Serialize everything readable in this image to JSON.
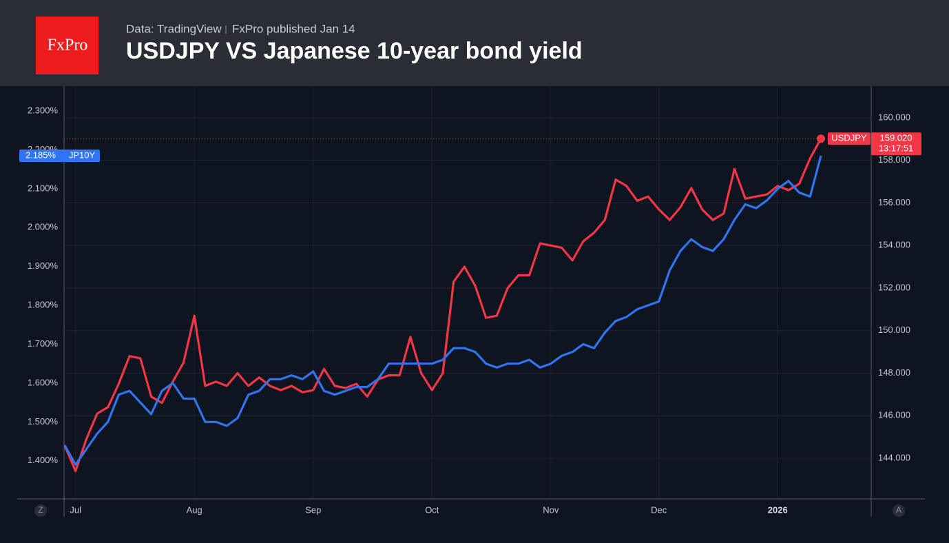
{
  "header": {
    "logo": "FxPro",
    "source": "Data: TradingView",
    "published": "FxPro published Jan 14"
  },
  "buttons": {
    "left": "Z",
    "right": "A"
  },
  "chart_data": {
    "type": "line",
    "title": "USDJPY VS Japanese 10-year bond yield",
    "categories": [
      null,
      "Jul",
      null,
      null,
      null,
      null,
      null,
      null,
      null,
      null,
      null,
      null,
      "Aug",
      null,
      null,
      null,
      null,
      null,
      null,
      null,
      null,
      null,
      null,
      "Sep",
      null,
      null,
      null,
      null,
      null,
      null,
      null,
      null,
      null,
      null,
      "Oct",
      null,
      null,
      null,
      null,
      null,
      null,
      null,
      null,
      null,
      null,
      "Nov",
      null,
      null,
      null,
      null,
      null,
      null,
      null,
      null,
      null,
      "Dec",
      null,
      null,
      null,
      null,
      null,
      null,
      null,
      null,
      null,
      null,
      "2026",
      null,
      null,
      null,
      null
    ],
    "series": [
      {
        "name": "USDJPY",
        "color": "#f23645",
        "axis": "y2",
        "values": [
          144.6,
          143.4,
          144.9,
          146.1,
          146.4,
          147.5,
          148.8,
          148.7,
          146.9,
          146.6,
          147.6,
          148.5,
          150.7,
          147.4,
          147.6,
          147.4,
          148.0,
          147.4,
          147.8,
          147.4,
          147.2,
          147.4,
          147.1,
          147.2,
          148.2,
          147.4,
          147.3,
          147.5,
          146.9,
          147.7,
          147.9,
          147.9,
          149.7,
          148.0,
          147.2,
          148.0,
          152.3,
          153.0,
          152.1,
          150.6,
          150.7,
          152.0,
          152.6,
          152.6,
          154.1,
          154.0,
          153.9,
          153.3,
          154.2,
          154.6,
          155.2,
          157.1,
          156.8,
          156.1,
          156.3,
          155.7,
          155.2,
          155.8,
          156.7,
          155.7,
          155.2,
          155.5,
          157.6,
          156.2,
          156.3,
          156.4,
          156.8,
          156.6,
          156.9,
          158.1,
          159.02
        ],
        "value_labels": [
          null,
          null,
          null,
          null,
          null,
          null,
          null,
          null,
          null,
          null,
          null,
          null,
          null,
          null,
          null,
          null,
          null,
          null,
          null,
          null,
          null,
          null,
          null,
          null,
          null,
          null,
          null,
          null,
          null,
          null,
          null,
          null,
          null,
          null,
          null,
          null,
          null,
          null,
          null,
          null,
          null,
          null,
          null,
          null,
          null,
          null,
          null,
          null,
          null,
          null,
          null,
          null,
          null,
          null,
          null,
          null,
          null,
          null,
          null,
          null,
          null,
          null,
          null,
          null,
          null,
          null,
          null,
          null,
          null,
          null,
          "159.020"
        ],
        "countdown": "13:17:51"
      },
      {
        "name": "JP10Y",
        "color": "#2f74f0",
        "values": [
          1.44,
          1.39,
          1.43,
          1.47,
          1.5,
          1.57,
          1.58,
          1.55,
          1.52,
          1.58,
          1.6,
          1.56,
          1.56,
          1.5,
          1.5,
          1.49,
          1.51,
          1.57,
          1.58,
          1.61,
          1.61,
          1.62,
          1.61,
          1.63,
          1.58,
          1.57,
          1.58,
          1.59,
          1.59,
          1.61,
          1.65,
          1.65,
          1.65,
          1.65,
          1.65,
          1.66,
          1.69,
          1.69,
          1.68,
          1.65,
          1.64,
          1.65,
          1.65,
          1.66,
          1.64,
          1.65,
          1.67,
          1.68,
          1.7,
          1.69,
          1.73,
          1.76,
          1.77,
          1.79,
          1.8,
          1.81,
          1.89,
          1.94,
          1.97,
          1.95,
          1.94,
          1.97,
          2.02,
          2.06,
          2.05,
          2.07,
          2.1,
          2.12,
          2.09,
          2.08,
          2.185
        ],
        "value_labels": [
          null,
          null,
          null,
          null,
          null,
          null,
          null,
          null,
          null,
          null,
          null,
          null,
          null,
          null,
          null,
          null,
          null,
          null,
          null,
          null,
          null,
          null,
          null,
          null,
          null,
          null,
          null,
          null,
          null,
          null,
          null,
          null,
          null,
          null,
          null,
          null,
          null,
          null,
          null,
          null,
          null,
          null,
          null,
          null,
          null,
          null,
          null,
          null,
          null,
          null,
          null,
          null,
          null,
          null,
          null,
          null,
          null,
          null,
          null,
          null,
          null,
          null,
          null,
          null,
          null,
          null,
          null,
          null,
          null,
          null,
          "2.185%"
        ]
      }
    ],
    "ylim": [
      1.302,
      2.364
    ],
    "yticks": [
      {
        "value": 1.4,
        "label": "1.400%"
      },
      {
        "value": 1.5,
        "label": "1.500%"
      },
      {
        "value": 1.6,
        "label": "1.600%"
      },
      {
        "value": 1.7,
        "label": "1.700%"
      },
      {
        "value": 1.8,
        "label": "1.800%"
      },
      {
        "value": 1.9,
        "label": "1.900%"
      },
      {
        "value": 2.0,
        "label": "2.000%"
      },
      {
        "value": 2.1,
        "label": "2.100%"
      },
      {
        "value": 2.2,
        "label": "2.200%"
      },
      {
        "value": 2.3,
        "label": "2.300%"
      }
    ],
    "y2lim": [
      142.09,
      161.49
    ],
    "y2ticks": [
      {
        "value": 144,
        "label": "144.000"
      },
      {
        "value": 146,
        "label": "146.000"
      },
      {
        "value": 148,
        "label": "148.000"
      },
      {
        "value": 150,
        "label": "150.000"
      },
      {
        "value": 152,
        "label": "152.000"
      },
      {
        "value": 154,
        "label": "154.000"
      },
      {
        "value": 156,
        "label": "156.000"
      },
      {
        "value": 158,
        "label": "158.000"
      },
      {
        "value": 160,
        "label": "160.000"
      }
    ],
    "grid": true
  }
}
